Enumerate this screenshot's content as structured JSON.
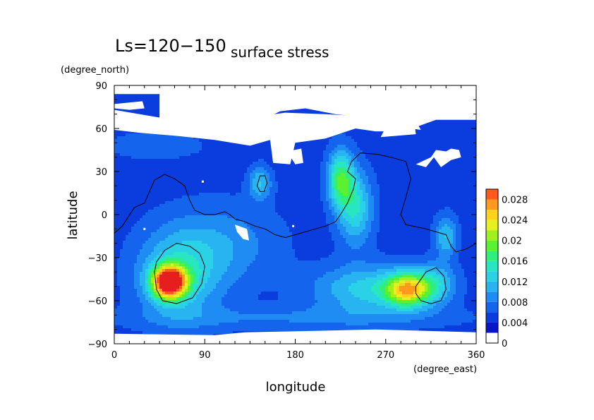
{
  "chart_data": {
    "type": "heatmap",
    "title": "Ls=120−150",
    "subtitle": "surface stress",
    "xlabel": "longitude",
    "ylabel": "latitude",
    "x_units": "(degree_east)",
    "y_units": "(degree_north)",
    "xlim": [
      0,
      360
    ],
    "ylim": [
      -90,
      90
    ],
    "x_ticks": [
      {
        "value": 0,
        "label": "0"
      },
      {
        "value": 90,
        "label": "90"
      },
      {
        "value": 180,
        "label": "180"
      },
      {
        "value": 270,
        "label": "270"
      },
      {
        "value": 360,
        "label": "360"
      }
    ],
    "y_ticks": [
      {
        "value": 90,
        "label": "90"
      },
      {
        "value": 60,
        "label": "60"
      },
      {
        "value": 30,
        "label": "30"
      },
      {
        "value": 0,
        "label": "0"
      },
      {
        "value": -30,
        "label": "−30"
      },
      {
        "value": -60,
        "label": "−60"
      },
      {
        "value": -90,
        "label": "−90"
      }
    ],
    "colorbar": {
      "min": 0,
      "max": 0.03,
      "ticks": [
        {
          "value": 0,
          "label": "0"
        },
        {
          "value": 0.004,
          "label": "0.004"
        },
        {
          "value": 0.008,
          "label": "0.008"
        },
        {
          "value": 0.012,
          "label": "0.012"
        },
        {
          "value": 0.016,
          "label": "0.016"
        },
        {
          "value": 0.02,
          "label": "0.02"
        },
        {
          "value": 0.024,
          "label": "0.024"
        },
        {
          "value": 0.028,
          "label": "0.028"
        }
      ],
      "colors": [
        "#ffffff",
        "#0a14c8",
        "#0a3cde",
        "#1464ee",
        "#1e8cf2",
        "#28b4f0",
        "#2ad2e6",
        "#28e6c0",
        "#30ee7c",
        "#5cf032",
        "#a0f01e",
        "#e6f01e",
        "#ffd21e",
        "#ff9a1e",
        "#ff5a1e",
        "#e61e1e"
      ]
    },
    "background_level": 0.003,
    "features": [
      {
        "lon": 55,
        "lat": -47,
        "peak": 0.027,
        "sx": 12,
        "sy": 8
      },
      {
        "lon": 65,
        "lat": -42,
        "peak": 0.008,
        "sx": 30,
        "sy": 22
      },
      {
        "lon": 292,
        "lat": -52,
        "peak": 0.017,
        "sx": 15,
        "sy": 8
      },
      {
        "lon": 255,
        "lat": -52,
        "peak": 0.008,
        "sx": 40,
        "sy": 12
      },
      {
        "lon": 320,
        "lat": -48,
        "peak": 0.006,
        "sx": 14,
        "sy": 10
      },
      {
        "lon": 225,
        "lat": 25,
        "peak": 0.012,
        "sx": 9,
        "sy": 14
      },
      {
        "lon": 240,
        "lat": 5,
        "peak": 0.009,
        "sx": 12,
        "sy": 18
      },
      {
        "lon": 145,
        "lat": 22,
        "peak": 0.007,
        "sx": 8,
        "sy": 8
      },
      {
        "lon": 330,
        "lat": -15,
        "peak": 0.007,
        "sx": 8,
        "sy": 10
      },
      {
        "lon": 110,
        "lat": -20,
        "peak": 0.004,
        "sx": 40,
        "sy": 20
      },
      {
        "lon": 180,
        "lat": -72,
        "peak": 0.003,
        "sx": 120,
        "sy": 6
      },
      {
        "lon": 40,
        "lat": 48,
        "peak": 0.002,
        "sx": 40,
        "sy": 8
      }
    ],
    "white_regions": [
      {
        "points": [
          [
            0,
            90
          ],
          [
            360,
            90
          ],
          [
            360,
            83
          ],
          [
            335,
            83
          ],
          [
            330,
            79
          ],
          [
            300,
            82
          ],
          [
            290,
            84
          ],
          [
            0,
            84
          ]
        ]
      },
      {
        "points": [
          [
            0,
            77
          ],
          [
            28,
            79
          ],
          [
            30,
            74
          ],
          [
            15,
            73
          ],
          [
            0,
            74
          ]
        ]
      },
      {
        "points": [
          [
            45,
            90
          ],
          [
            45,
            66
          ],
          [
            80,
            62
          ],
          [
            95,
            58
          ],
          [
            120,
            57
          ],
          [
            145,
            65
          ],
          [
            165,
            72
          ],
          [
            190,
            74
          ],
          [
            220,
            70
          ],
          [
            270,
            66
          ],
          [
            290,
            63
          ],
          [
            300,
            61
          ],
          [
            320,
            66
          ],
          [
            355,
            66
          ],
          [
            360,
            66
          ],
          [
            360,
            90
          ]
        ]
      },
      {
        "points": [
          [
            0,
            84
          ],
          [
            0,
            59
          ],
          [
            25,
            57
          ],
          [
            60,
            55
          ],
          [
            100,
            52
          ],
          [
            135,
            48
          ],
          [
            155,
            52
          ],
          [
            158,
            36
          ],
          [
            175,
            35
          ],
          [
            180,
            50
          ],
          [
            210,
            53
          ],
          [
            240,
            60
          ],
          [
            260,
            58
          ],
          [
            275,
            58
          ],
          [
            295,
            60
          ],
          [
            305,
            59
          ],
          [
            300,
            65
          ],
          [
            260,
            68
          ],
          [
            210,
            70
          ],
          [
            170,
            71
          ],
          [
            120,
            66
          ],
          [
            90,
            62
          ],
          [
            50,
            67
          ],
          [
            0,
            73
          ]
        ]
      },
      {
        "points": [
          [
            300,
            35
          ],
          [
            315,
            40
          ],
          [
            320,
            45
          ],
          [
            330,
            44
          ],
          [
            335,
            46
          ],
          [
            343,
            45
          ],
          [
            345,
            40
          ],
          [
            335,
            38
          ],
          [
            325,
            33
          ],
          [
            318,
            40
          ],
          [
            310,
            33
          ]
        ]
      },
      {
        "points": [
          [
            265,
            54
          ],
          [
            300,
            56
          ],
          [
            299,
            61
          ],
          [
            285,
            60
          ],
          [
            270,
            61
          ]
        ]
      },
      {
        "points": [
          [
            172,
            44
          ],
          [
            186,
            46
          ],
          [
            188,
            36
          ],
          [
            180,
            35
          ]
        ]
      },
      {
        "points": [
          [
            120,
            -7
          ],
          [
            132,
            -10
          ],
          [
            134,
            -18
          ],
          [
            128,
            -17
          ],
          [
            122,
            -12
          ]
        ]
      },
      {
        "points": [
          [
            0,
            -83
          ],
          [
            100,
            -84
          ],
          [
            130,
            -82
          ],
          [
            200,
            -81
          ],
          [
            260,
            -80
          ],
          [
            360,
            -82
          ],
          [
            360,
            -90
          ],
          [
            0,
            -90
          ]
        ]
      }
    ],
    "contours": [
      {
        "points": [
          [
            0,
            -13
          ],
          [
            8,
            -8
          ],
          [
            20,
            5
          ],
          [
            30,
            8
          ],
          [
            40,
            24
          ],
          [
            50,
            28
          ],
          [
            60,
            25
          ],
          [
            70,
            20
          ],
          [
            75,
            10
          ],
          [
            80,
            3
          ],
          [
            90,
            0
          ],
          [
            100,
            0
          ],
          [
            110,
            2
          ],
          [
            115,
            0
          ],
          [
            120,
            -3
          ],
          [
            130,
            -5
          ],
          [
            140,
            -8
          ],
          [
            150,
            -10
          ],
          [
            160,
            -14
          ],
          [
            170,
            -16
          ],
          [
            180,
            -14
          ],
          [
            190,
            -12
          ],
          [
            200,
            -10
          ],
          [
            210,
            -8
          ],
          [
            220,
            -5
          ],
          [
            225,
            0
          ],
          [
            232,
            8
          ],
          [
            238,
            18
          ],
          [
            240,
            25
          ],
          [
            232,
            30
          ],
          [
            236,
            37
          ],
          [
            245,
            43
          ],
          [
            262,
            42
          ],
          [
            275,
            40
          ],
          [
            290,
            37
          ],
          [
            295,
            25
          ],
          [
            290,
            12
          ],
          [
            285,
            0
          ],
          [
            290,
            -7
          ],
          [
            310,
            -10
          ],
          [
            330,
            -14
          ],
          [
            335,
            -22
          ],
          [
            340,
            -26
          ],
          [
            350,
            -24
          ],
          [
            360,
            -20
          ]
        ]
      },
      {
        "points": [
          [
            40,
            -40
          ],
          [
            42,
            -33
          ],
          [
            50,
            -25
          ],
          [
            62,
            -20
          ],
          [
            75,
            -22
          ],
          [
            85,
            -27
          ],
          [
            90,
            -36
          ],
          [
            87,
            -48
          ],
          [
            78,
            -58
          ],
          [
            62,
            -62
          ],
          [
            48,
            -60
          ],
          [
            42,
            -52
          ]
        ]
      },
      {
        "points": [
          [
            300,
            -50
          ],
          [
            310,
            -40
          ],
          [
            320,
            -37
          ],
          [
            328,
            -43
          ],
          [
            330,
            -52
          ],
          [
            325,
            -60
          ],
          [
            315,
            -62
          ],
          [
            305,
            -60
          ],
          [
            300,
            -55
          ]
        ]
      },
      {
        "points": [
          [
            142,
            20
          ],
          [
            145,
            27
          ],
          [
            150,
            27
          ],
          [
            152,
            22
          ],
          [
            149,
            16
          ],
          [
            145,
            16
          ]
        ]
      }
    ],
    "specks": [
      [
        178,
        -8
      ],
      [
        30,
        -10
      ],
      [
        88,
        23
      ]
    ]
  }
}
